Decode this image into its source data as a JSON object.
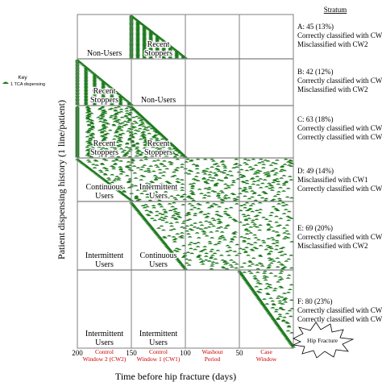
{
  "key": {
    "title": "Key",
    "entry": "1 TCA dispensing"
  },
  "colors": {
    "dispensing": "#1e7a1e",
    "window_label": "#cc0000",
    "text": "#000000",
    "grid": "#7f7f7f"
  },
  "chart_data": {
    "type": "scatter",
    "xlabel": "Time before hip fracture (days)",
    "ylabel": "Patient dispensing history (1 line/patient)",
    "x_ticks": [
      "200",
      "150",
      "100",
      "50"
    ],
    "xlim": [
      200,
      0
    ],
    "windows": [
      {
        "label_line1": "Control",
        "label_line2": "Window 2 (CW2)",
        "start": 200,
        "end": 150
      },
      {
        "label_line1": "Control",
        "label_line2": "Window 1 (CW1)",
        "start": 150,
        "end": 100
      },
      {
        "label_line1": "Washout",
        "label_line2": "Period",
        "start": 100,
        "end": 50
      },
      {
        "label_line1": "Case",
        "label_line2": "Window",
        "start": 50,
        "end": 0
      }
    ],
    "fracture_label": "Hip Fracture",
    "stratum_header": "Stratum",
    "strata": [
      {
        "id": "A",
        "count": 45,
        "percent": 13,
        "label": "A: 45 (13%)",
        "notes": [
          "Correctly classified with CW1",
          "Misclassified with CW2"
        ],
        "cells": [
          "Non-Users",
          "Recent Stoppers",
          "",
          ""
        ],
        "pattern": "stop_cw1"
      },
      {
        "id": "B",
        "count": 42,
        "percent": 12,
        "label": "B: 42 (12%)",
        "notes": [
          "Correctly classified with CW1",
          "Misclassified with CW2"
        ],
        "cells": [
          "Recent Stoppers",
          "Non-Users",
          "",
          ""
        ],
        "pattern": "stop_cw2"
      },
      {
        "id": "C",
        "count": 63,
        "percent": 18,
        "label": "C: 63 (18%)",
        "notes": [
          "Correctly classified with CW1",
          "Correctly classified with CW2"
        ],
        "cells": [
          "Recent Stoppers",
          "Recent Stoppers",
          "",
          ""
        ],
        "pattern": "stop_washout"
      },
      {
        "id": "D",
        "count": 49,
        "percent": 14,
        "label": "D: 49 (14%)",
        "notes": [
          "Misclassified with CW1",
          "Correctly classified with CW2"
        ],
        "cells": [
          "Continuous Users",
          "Intermittent Users",
          "",
          ""
        ],
        "pattern": "start_cw2"
      },
      {
        "id": "E",
        "count": 69,
        "percent": 20,
        "label": "E: 69 (20%)",
        "notes": [
          "Correctly classified with CW1",
          "Misclassified with CW2"
        ],
        "cells": [
          "Intermittent Users",
          "Continuous Users",
          "",
          ""
        ],
        "pattern": "start_cw1"
      },
      {
        "id": "F",
        "count": 80,
        "percent": 23,
        "label": "F: 80 (23%)",
        "notes": [
          "Correctly classified with CW1",
          "Correctly classified with CW2"
        ],
        "cells": [
          "Intermittent Users",
          "Intermittent Users",
          "",
          ""
        ],
        "pattern": "start_case"
      }
    ]
  }
}
